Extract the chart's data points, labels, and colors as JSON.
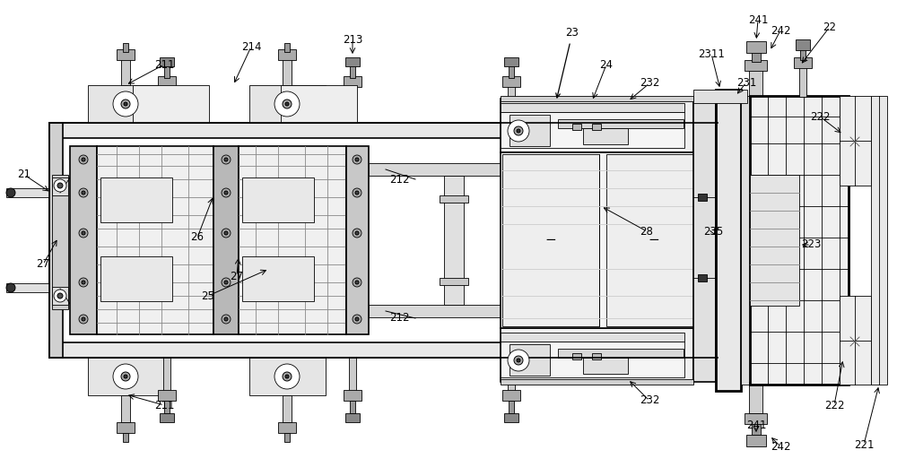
{
  "bg_color": "#ffffff",
  "figsize": [
    10.0,
    5.31
  ],
  "dpi": 100,
  "lw_thin": 0.6,
  "lw_med": 1.2,
  "lw_thick": 2.0,
  "font_size": 8.5
}
